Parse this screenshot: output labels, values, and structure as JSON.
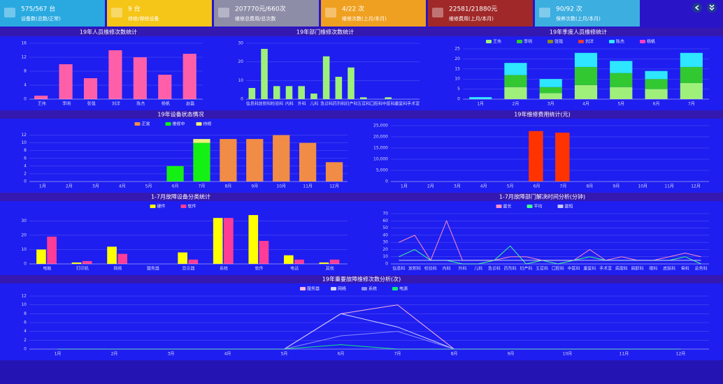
{
  "cards": [
    {
      "value": "575/567 台",
      "label": "设备数(总数/正常)"
    },
    {
      "value": "9 台",
      "label": "待修/保修设备"
    },
    {
      "value": "207770元/660次",
      "label": "维修总费用/总次数"
    },
    {
      "value": "4/22 次",
      "label": "维修次数(上月/本月)"
    },
    {
      "value": "22581/21880元",
      "label": "维修费用(上月/本月)"
    },
    {
      "value": "90/92 次",
      "label": "保养次数(上月/本月)"
    }
  ],
  "chart_data": [
    {
      "type": "bar",
      "title": "19年人员维修次数统计",
      "categories": [
        "王伟",
        "李明",
        "张强",
        "刘洋",
        "陈杰",
        "杨帆",
        "赵磊"
      ],
      "values": [
        1,
        10,
        6,
        14,
        12,
        7,
        13
      ],
      "color": "#ff5fa8",
      "ylim": [
        0,
        16
      ],
      "yticks": [
        0,
        4,
        8,
        12,
        16
      ]
    },
    {
      "type": "bar",
      "title": "19年部门维修次数统计",
      "categories": [
        "信息科",
        "放射科",
        "检验科",
        "内科",
        "外科",
        "儿科",
        "急诊科",
        "药剂科",
        "妇产科",
        "五官科",
        "口腔科",
        "中医科",
        "康复科",
        "手术室"
      ],
      "values": [
        6,
        27,
        7,
        7,
        7,
        3,
        23,
        12,
        17,
        1,
        0,
        1,
        0,
        0
      ],
      "color": "#9ef07a",
      "ylim": [
        0,
        30
      ],
      "yticks": [
        0,
        10,
        20,
        30
      ]
    },
    {
      "type": "stacked_bar",
      "title": "19年季度人员维修统计",
      "legend": true,
      "categories": [
        "1月",
        "2月",
        "3月",
        "4月",
        "5月",
        "6月",
        "7月"
      ],
      "series": [
        {
          "name": "王伟",
          "color": "#9ef07a",
          "values": [
            0,
            6,
            3,
            7,
            6,
            5,
            8
          ]
        },
        {
          "name": "李明",
          "color": "#32c832",
          "values": [
            0,
            6,
            3,
            9,
            7,
            5,
            8
          ]
        },
        {
          "name": "张强",
          "color": "#8c8c1e",
          "values": [
            0,
            0,
            0,
            0,
            0,
            0,
            0
          ]
        },
        {
          "name": "刘洋",
          "color": "#e03c3c",
          "values": [
            0,
            0,
            0,
            0,
            0,
            0,
            0
          ]
        },
        {
          "name": "陈杰",
          "color": "#2ee6ff",
          "values": [
            1,
            6,
            4,
            7,
            6,
            4,
            7
          ]
        },
        {
          "name": "杨帆",
          "color": "#ff3cc8",
          "values": [
            0,
            0,
            0,
            0,
            0,
            0,
            0
          ]
        }
      ],
      "ylim": [
        0,
        25
      ],
      "yticks": [
        0,
        5,
        10,
        15,
        20,
        25
      ]
    },
    {
      "type": "stacked_bar",
      "title": "19年设备状态情况",
      "legend": true,
      "categories": [
        "1月",
        "2月",
        "3月",
        "4月",
        "5月",
        "6月",
        "7月",
        "8月",
        "9月",
        "10月",
        "11月",
        "12月"
      ],
      "series": [
        {
          "name": "正常",
          "color": "#f08c46",
          "values": [
            0,
            0,
            0,
            0,
            0,
            0,
            0,
            11,
            11,
            12,
            10,
            5
          ]
        },
        {
          "name": "维修中",
          "color": "#14f014",
          "values": [
            0,
            0,
            0,
            0,
            0,
            4,
            10,
            0,
            0,
            0,
            0,
            0
          ]
        },
        {
          "name": "待修",
          "color": "#f0f078",
          "values": [
            0,
            0,
            0,
            0,
            0,
            0,
            1,
            0,
            0,
            0,
            0,
            0
          ]
        }
      ],
      "ylim": [
        0,
        13
      ],
      "yticks": [
        0,
        2,
        4,
        6,
        8,
        10,
        12
      ]
    },
    {
      "type": "bar",
      "title": "19年维修费用统计(元)",
      "categories": [
        "1月",
        "2月",
        "3月",
        "4月",
        "5月",
        "6月",
        "7月",
        "8月",
        "9月",
        "10月",
        "11月",
        "12月"
      ],
      "values": [
        0,
        0,
        0,
        0,
        0,
        22581,
        21880,
        0,
        0,
        0,
        0,
        0
      ],
      "color": "#ff3300",
      "ylim": [
        0,
        25000
      ],
      "yticks": [
        0,
        {
          "value": 5000,
          "label": "5,000"
        },
        {
          "value": 10000,
          "label": "10,000"
        },
        {
          "value": 15000,
          "label": "15,000"
        },
        {
          "value": 20000,
          "label": "20,000"
        },
        {
          "value": 25000,
          "label": "25,000"
        }
      ]
    },
    {
      "type": "bar",
      "title": "1-7月故障设备分类统计",
      "legend": true,
      "categories": [
        "电脑",
        "打印机",
        "网络",
        "服务器",
        "显示器",
        "系统",
        "软件",
        "电话",
        "其他"
      ],
      "series": [
        {
          "name": "硬件",
          "color": "#ffff00",
          "values": [
            10,
            1,
            12,
            0,
            8,
            32,
            34,
            6,
            1
          ]
        },
        {
          "name": "软件",
          "color": "#ff3c96",
          "values": [
            19,
            2,
            7,
            0,
            3,
            32,
            16,
            3,
            3
          ]
        }
      ],
      "ylim": [
        0,
        35
      ],
      "yticks": [
        0,
        10,
        20,
        30
      ]
    },
    {
      "type": "line",
      "title": "1-7月故障部门解决时间分析(分钟)",
      "legend": true,
      "categories": [
        "信息科",
        "放射科",
        "检验科",
        "内科",
        "外科",
        "儿科",
        "急诊科",
        "药剂科",
        "妇产科",
        "五官科",
        "口腔科",
        "中医科",
        "康复科",
        "手术室",
        "病理科",
        "麻醉科",
        "眼科",
        "皮肤科",
        "骨科",
        "总务科"
      ],
      "series": [
        {
          "name": "最长",
          "color": "#ff8cc8",
          "values": [
            30,
            40,
            5,
            60,
            5,
            5,
            5,
            10,
            10,
            5,
            5,
            5,
            20,
            5,
            10,
            5,
            5,
            10,
            15,
            10
          ]
        },
        {
          "name": "平均",
          "color": "#3cff8c",
          "values": [
            10,
            20,
            5,
            5,
            0,
            0,
            5,
            25,
            0,
            5,
            0,
            5,
            10,
            5,
            5,
            5,
            5,
            5,
            10,
            0
          ]
        },
        {
          "name": "最短",
          "color": "#c8c8ff",
          "values": [
            5,
            5,
            5,
            5,
            5,
            5,
            5,
            5,
            5,
            5,
            5,
            5,
            5,
            5,
            5,
            5,
            5,
            5,
            5,
            5
          ]
        }
      ],
      "ylim": [
        0,
        70
      ],
      "yticks": [
        0,
        10,
        20,
        30,
        40,
        50,
        60,
        70
      ]
    },
    {
      "type": "line",
      "title": "19年重要故障维修次数分析(次)",
      "legend": true,
      "categories": [
        "1月",
        "2月",
        "3月",
        "4月",
        "5月",
        "6月",
        "7月",
        "8月",
        "9月",
        "10月",
        "11月",
        "12月"
      ],
      "series": [
        {
          "name": "服务器",
          "color": "#ffb4dc",
          "values": [
            0,
            0,
            0,
            0,
            0,
            8,
            10,
            0,
            0,
            0,
            0,
            0
          ]
        },
        {
          "name": "网络",
          "color": "#d2d2ff",
          "values": [
            0,
            0,
            0,
            0,
            0,
            8,
            5,
            0,
            0,
            0,
            0,
            0
          ]
        },
        {
          "name": "系统",
          "color": "#8c8cff",
          "values": [
            0,
            0,
            0,
            0,
            0,
            3,
            4,
            0,
            0,
            0,
            0,
            0
          ]
        },
        {
          "name": "电源",
          "color": "#14e678",
          "values": [
            0,
            0,
            0,
            0,
            0,
            1,
            0,
            0,
            0,
            0,
            0,
            0
          ]
        }
      ],
      "ylim": [
        0,
        12
      ],
      "yticks": [
        0,
        2,
        4,
        6,
        8,
        10,
        12
      ]
    }
  ]
}
